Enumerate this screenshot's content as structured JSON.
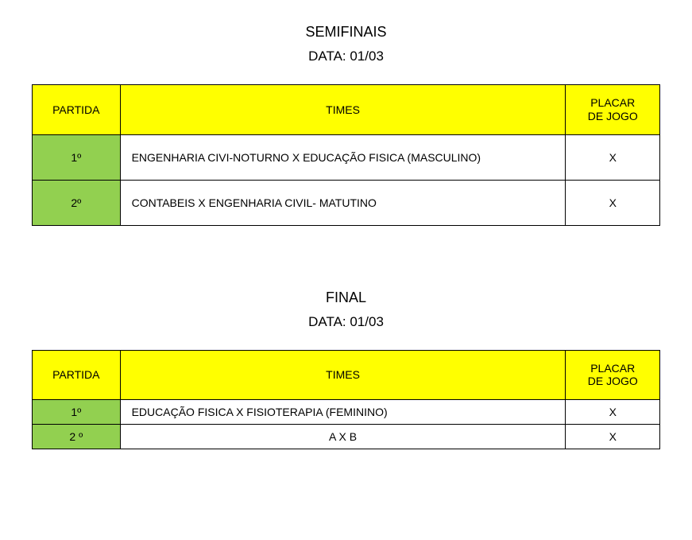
{
  "sections": [
    {
      "title": "SEMIFINAIS",
      "date": "DATA: 01/03",
      "headers": {
        "partida": "PARTIDA",
        "times": "TIMES",
        "placar_line1": "PLACAR",
        "placar_line2": "DE JOGO"
      },
      "rows": [
        {
          "partida": "1º",
          "times": "ENGENHARIA CIVI-NOTURNO X EDUCAÇÃO FISICA (MASCULINO)",
          "placar": "X",
          "row_class": "tall-row",
          "times_align": "left"
        },
        {
          "partida": "2º",
          "times": "CONTABEIS X ENGENHARIA CIVIL- MATUTINO",
          "placar": "X",
          "row_class": "tall-row",
          "times_align": "left"
        }
      ],
      "header_row_height": 56,
      "colors": {
        "header_bg": "#ffff00",
        "partida_bg": "#92d050"
      }
    },
    {
      "title": "FINAL",
      "date": "DATA: 01/03",
      "headers": {
        "partida": "PARTIDA",
        "times": "TIMES",
        "placar_line1": "PLACAR",
        "placar_line2": "DE JOGO"
      },
      "rows": [
        {
          "partida": "1º",
          "times": "EDUCAÇÃO FISICA X FISIOTERAPIA (FEMININO)",
          "placar": "X",
          "row_class": "short-row",
          "times_align": "left"
        },
        {
          "partida": "2 º",
          "times": "A X B",
          "placar": "X",
          "row_class": "short-row",
          "times_align": "center"
        }
      ],
      "header_row_height": 56,
      "colors": {
        "header_bg": "#ffff00",
        "partida_bg": "#92d050"
      }
    }
  ]
}
